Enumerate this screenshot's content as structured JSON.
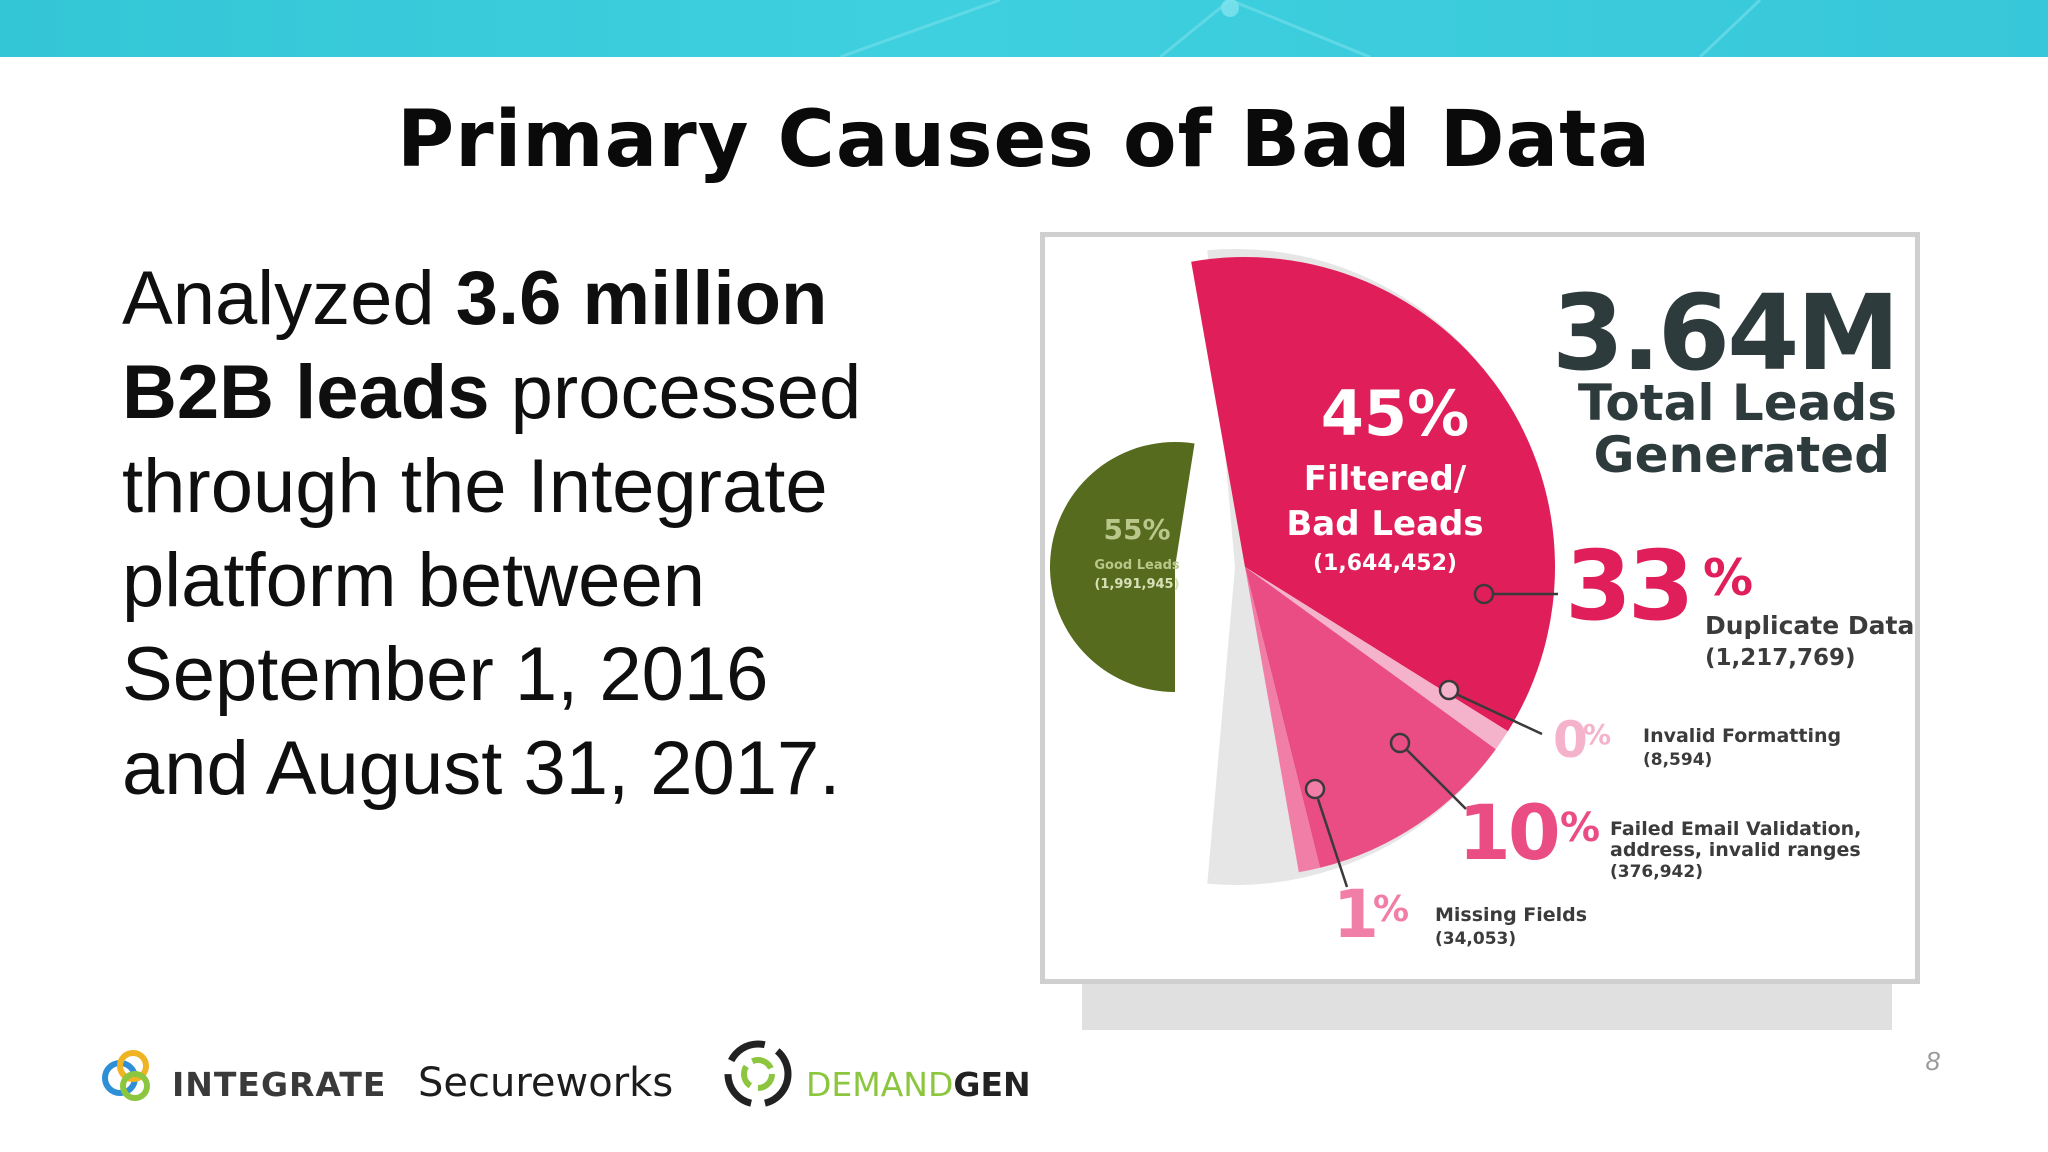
{
  "slide": {
    "title": "Primary Causes of Bad Data",
    "body_segments": [
      {
        "text": "Analyzed ",
        "bold": false
      },
      {
        "text": "3.6 million B2B leads",
        "bold": true
      },
      {
        "text": " processed through the Integrate platform between September 1, 2016 and August 31, 2017.",
        "bold": false
      }
    ],
    "body_lines": [
      [
        {
          "t": "Analyzed ",
          "b": false
        },
        {
          "t": "3.6 million",
          "b": true
        }
      ],
      [
        {
          "t": "B2B leads",
          "b": true
        },
        {
          "t": " processed",
          "b": false
        }
      ],
      [
        {
          "t": "through the Integrate",
          "b": false
        }
      ],
      [
        {
          "t": "platform between",
          "b": false
        }
      ],
      [
        {
          "t": "September 1, 2016",
          "b": false
        }
      ],
      [
        {
          "t": "and August 31, 2017.",
          "b": false
        }
      ]
    ],
    "page_number": "8"
  },
  "logos": {
    "integrate": "INTEGRATE",
    "secureworks": "Secureworks",
    "demandgen_part1": "DEMAND",
    "demandgen_part2": "GEN"
  },
  "colors": {
    "top_band": "#36c8da",
    "good": "#566b1d",
    "bad": "#e01e5a",
    "failed_email": "#ea4d84",
    "missing_fields": "#f17ea7",
    "invalid_formatting": "#f5b3cb",
    "shadow_arc": "#e6e6e6",
    "heading": "#2e3b3d",
    "label_text": "#3b3b3b"
  },
  "chart_data": {
    "type": "pie",
    "total": {
      "value": "3.64M",
      "label_line1": "Total Leads",
      "label_line2": "Generated"
    },
    "slices": [
      {
        "name": "Good Leads",
        "percent": 55,
        "percent_text": "55%",
        "count": "(1,991,945)"
      },
      {
        "name_line1": "Filtered/",
        "name_line2": "Bad Leads",
        "percent": 45,
        "percent_text": "45%",
        "count": "(1,644,452)"
      }
    ],
    "bad_breakdown": [
      {
        "name": "Duplicate Data",
        "percent": 33,
        "percent_num": "33",
        "count": "(1,217,769)"
      },
      {
        "name": "Invalid Formatting",
        "percent": 0,
        "percent_num": "0",
        "count": "(8,594)"
      },
      {
        "name_line1": "Failed Email Validation,",
        "name_line2": "address, invalid ranges",
        "percent": 10,
        "percent_num": "10",
        "count": "(376,942)"
      },
      {
        "name": "Missing Fields",
        "percent": 1,
        "percent_num": "1",
        "count": "(34,053)"
      }
    ]
  }
}
